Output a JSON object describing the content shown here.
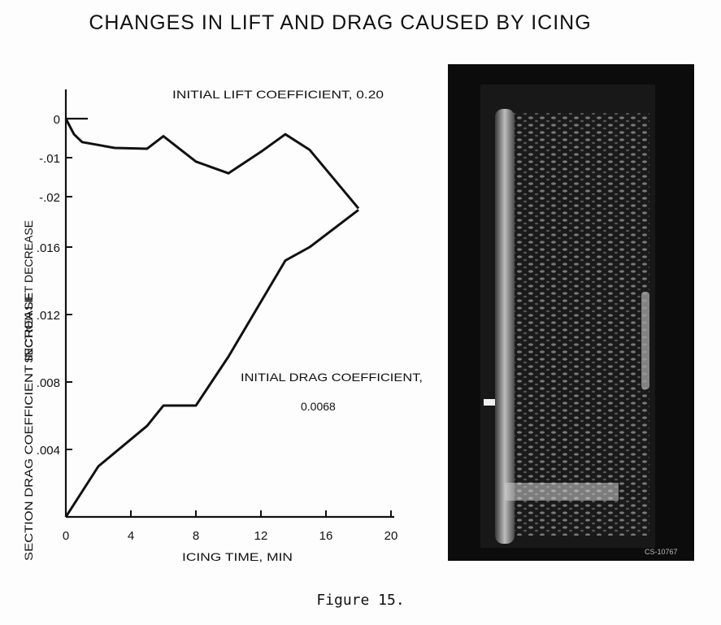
{
  "title": "CHANGES IN LIFT AND DRAG CAUSED BY ICING",
  "caption": "Figure 15.",
  "photo": {
    "stamp": "CS-10767",
    "colors": {
      "background": "#0c0c0c",
      "ice": "#d8d8d8"
    }
  },
  "chart_data": {
    "type": "line",
    "xlabel": "ICING TIME, MIN",
    "xlim": [
      0,
      20
    ],
    "x_ticks": [
      "0",
      "4",
      "8",
      "12",
      "16",
      "20"
    ],
    "upper": {
      "ylabel": "SECTION LIFT DECREASE",
      "y_ticks": [
        "0",
        "-.01",
        "-.02"
      ],
      "annotation": "INITIAL LIFT COEFFICIENT, 0.20",
      "series": [
        {
          "x": [
            0,
            0.5,
            1,
            3,
            5,
            6,
            8,
            10,
            12,
            13.5,
            15,
            16.5,
            18
          ],
          "y": [
            0,
            -0.004,
            -0.006,
            -0.0075,
            -0.0077,
            -0.0045,
            -0.011,
            -0.014,
            -0.0085,
            -0.004,
            -0.008,
            -0.0155,
            -0.023
          ]
        }
      ]
    },
    "lower": {
      "ylabel": "SECTION DRAG COEFFICIENT INCREASE",
      "ylim": [
        0,
        0.018
      ],
      "y_ticks": [
        ".004",
        ".008",
        ".012",
        ".016"
      ],
      "annotation_line1": "INITIAL DRAG COEFFICIENT,",
      "annotation_line2": "0.0068",
      "series": [
        {
          "x": [
            0,
            2,
            5,
            6,
            8,
            10,
            13.5,
            15,
            18
          ],
          "y": [
            0,
            0.003,
            0.0054,
            0.0066,
            0.0066,
            0.0095,
            0.0152,
            0.016,
            0.0182
          ]
        }
      ]
    },
    "grid": false
  }
}
